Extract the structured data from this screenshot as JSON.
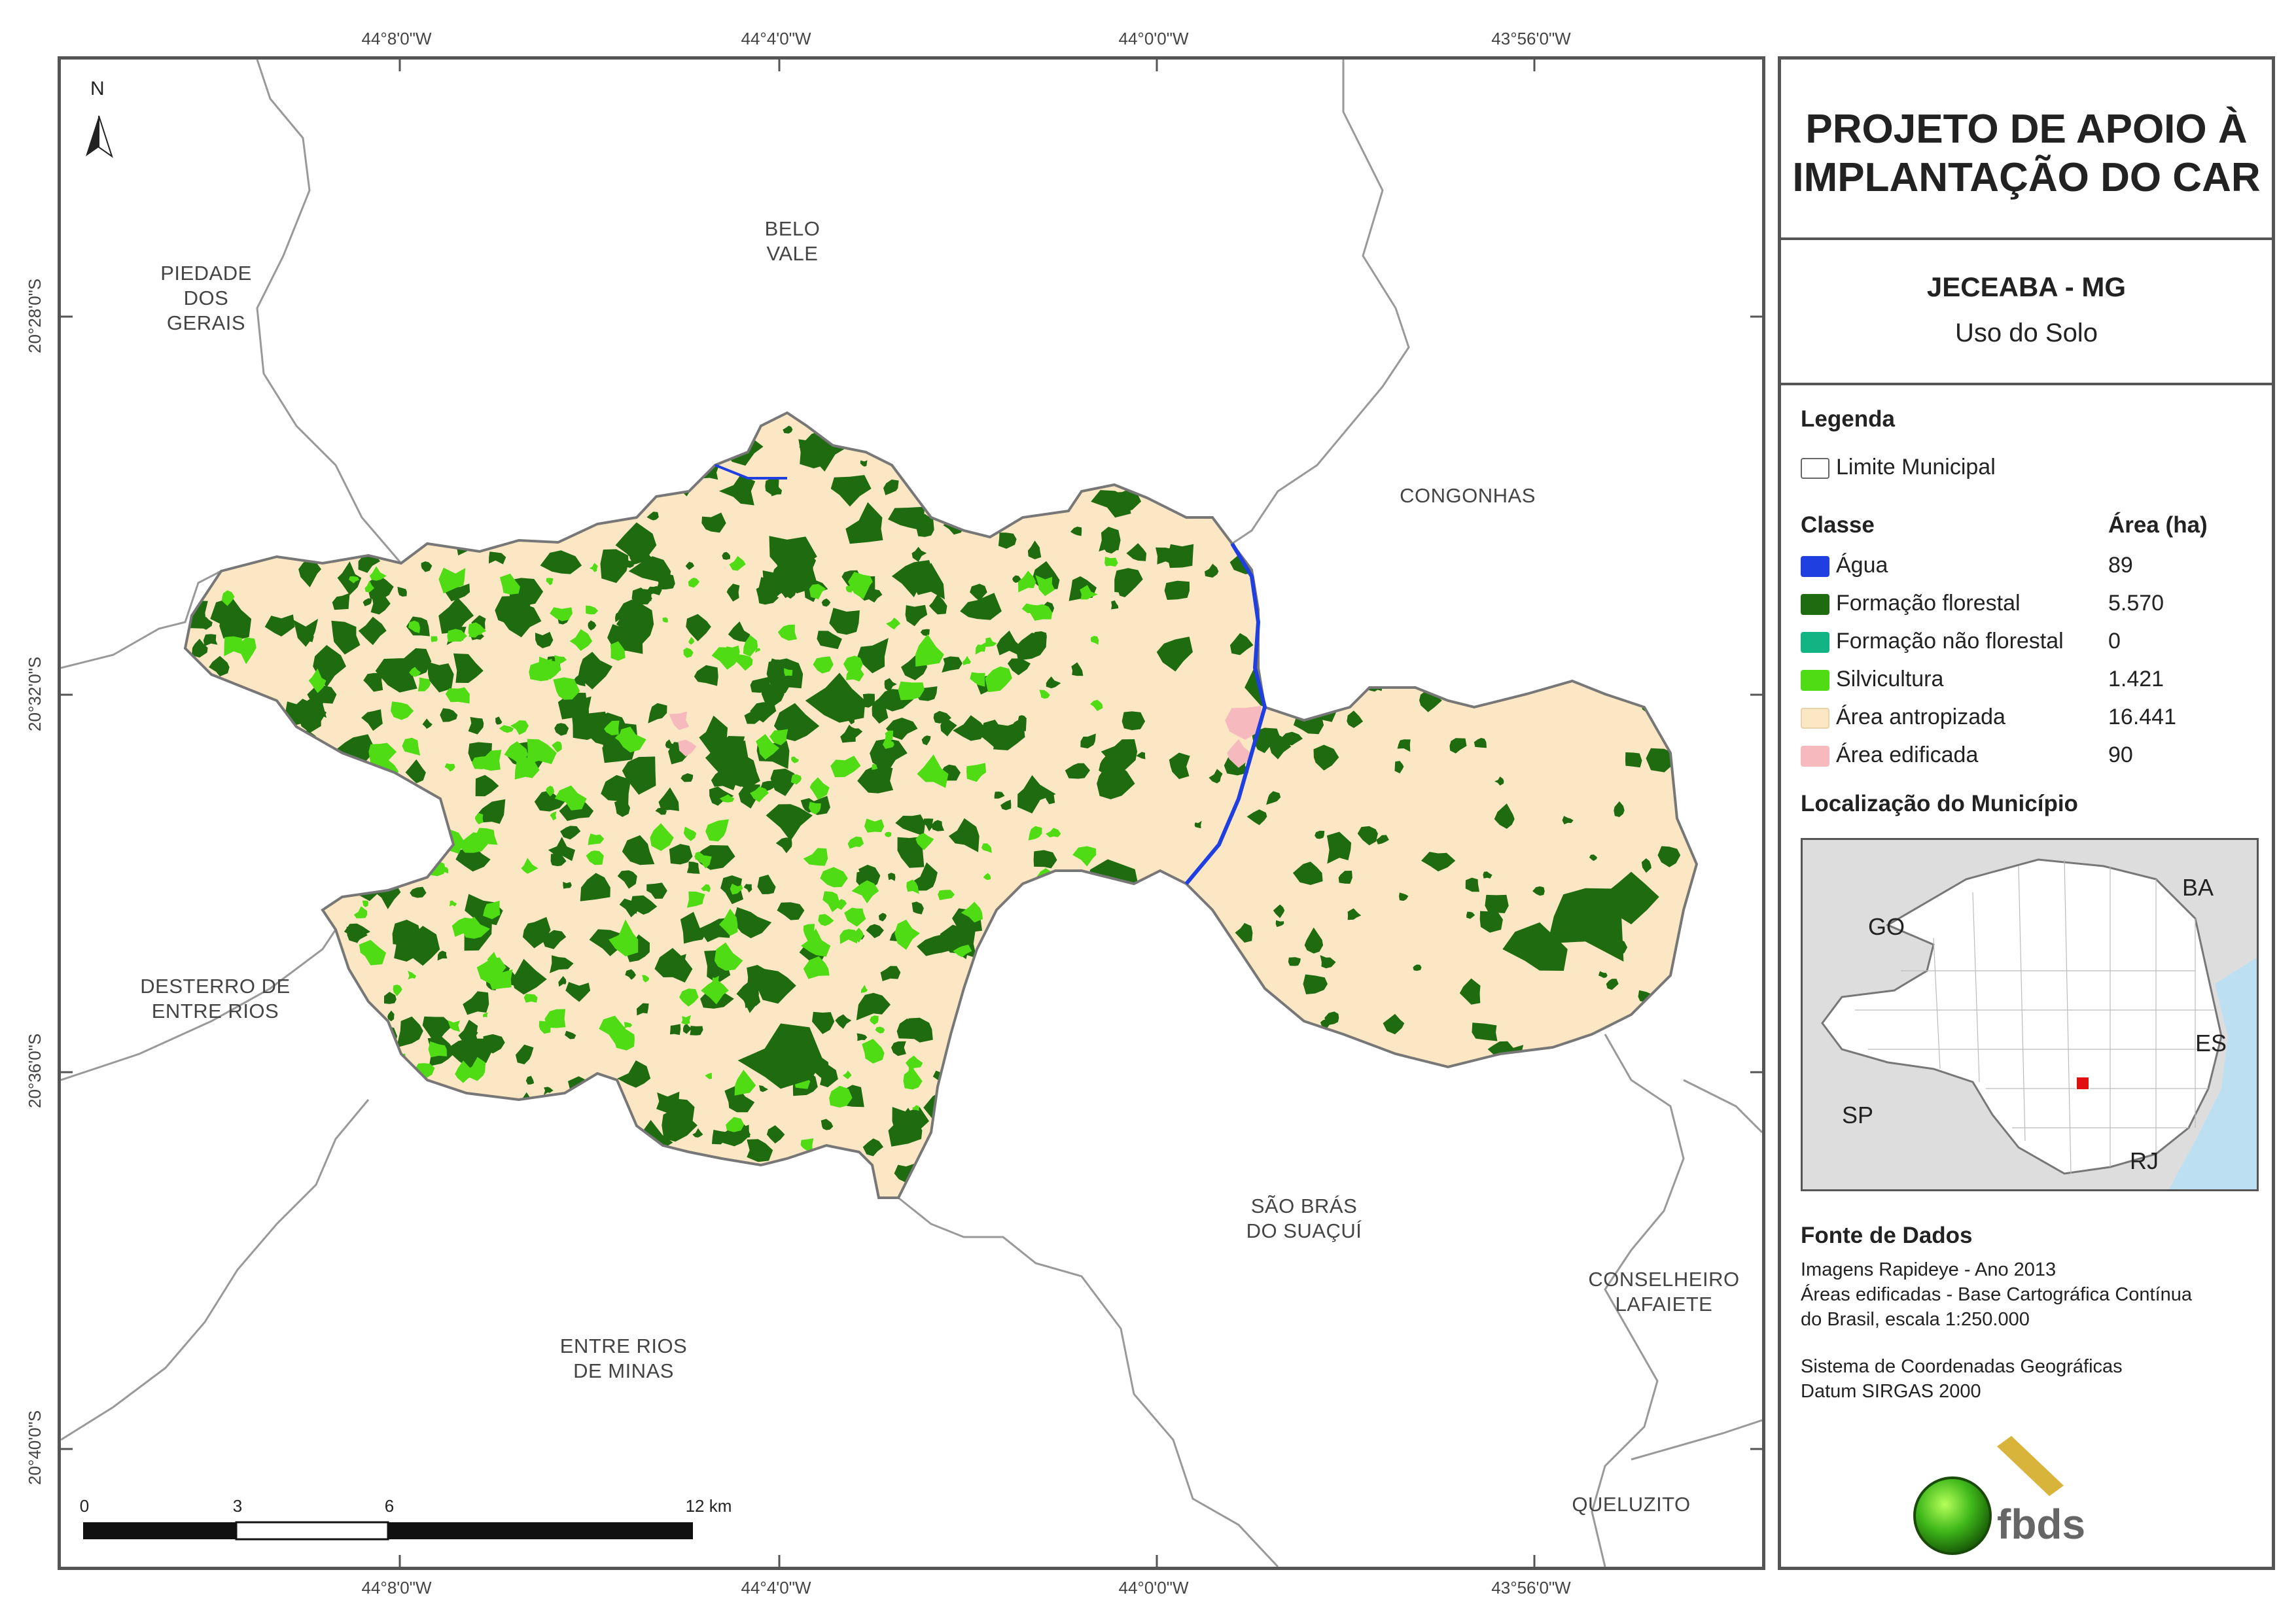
{
  "title": "PROJETO DE APOIO À\nIMPLANTAÇÃO DO CAR",
  "title_lines": [
    "PROJETO DE APOIO À",
    "IMPLANTAÇÃO DO CAR"
  ],
  "municipality": "JECEABA - MG",
  "theme": "Uso do Solo",
  "legend": {
    "heading": "Legenda",
    "boundary_label": "Limite Municipal",
    "class_heading": "Classe",
    "area_heading": "Área (ha)",
    "classes": [
      {
        "label": "Água",
        "area": "89",
        "color": "#1f3fe0"
      },
      {
        "label": "Formação florestal",
        "area": "5.570",
        "color": "#1f6b10"
      },
      {
        "label": "Formação não florestal",
        "area": "0",
        "color": "#12b483"
      },
      {
        "label": "Silvicultura",
        "area": "1.421",
        "color": "#4fdc14"
      },
      {
        "label": "Área antropizada",
        "area": "16.441",
        "color": "#fbe7c3"
      },
      {
        "label": "Área edificada",
        "area": "90",
        "color": "#f6b9bd"
      }
    ]
  },
  "location": {
    "heading": "Localização do Município",
    "states": [
      "GO",
      "BA",
      "ES",
      "SP",
      "RJ"
    ]
  },
  "sources": {
    "heading": "Fonte de Dados",
    "lines": [
      "Imagens Rapideye - Ano 2013",
      "Áreas edificadas - Base Cartográfica Contínua",
      "do Brasil, escala 1:250.000"
    ],
    "crs_lines": [
      "Sistema de Coordenadas Geográficas",
      "Datum SIRGAS 2000"
    ]
  },
  "logo_text": "fbds",
  "north_label": "N",
  "grid": {
    "lon_labels": [
      "44°8'0\"W",
      "44°4'0\"W",
      "44°0'0\"W",
      "43°56'0\"W"
    ],
    "lat_labels": [
      "20°28'0\"S",
      "20°32'0\"S",
      "20°36'0\"S",
      "20°40'0\"S"
    ]
  },
  "scalebar": {
    "labels": [
      "0",
      "3",
      "6",
      "12 km"
    ]
  },
  "neighbors": [
    {
      "name": "PIEDADE\nDOS\nGERAIS"
    },
    {
      "name": "BELO\nVALE"
    },
    {
      "name": "CONGONHAS"
    },
    {
      "name": "DESTERRO DE\nENTRE RIOS"
    },
    {
      "name": "SÃO BRÁS\nDO SUAÇUÍ"
    },
    {
      "name": "ENTRE RIOS\nDE MINAS"
    },
    {
      "name": "CONSELHEIRO\nLAFAIETE"
    },
    {
      "name": "QUELUZITO"
    }
  ],
  "colors": {
    "frame": "#555555",
    "boundary": "#888888",
    "inset_sea": "#bcdff2",
    "inset_land": "#dddddd",
    "marker": "#e01010"
  }
}
